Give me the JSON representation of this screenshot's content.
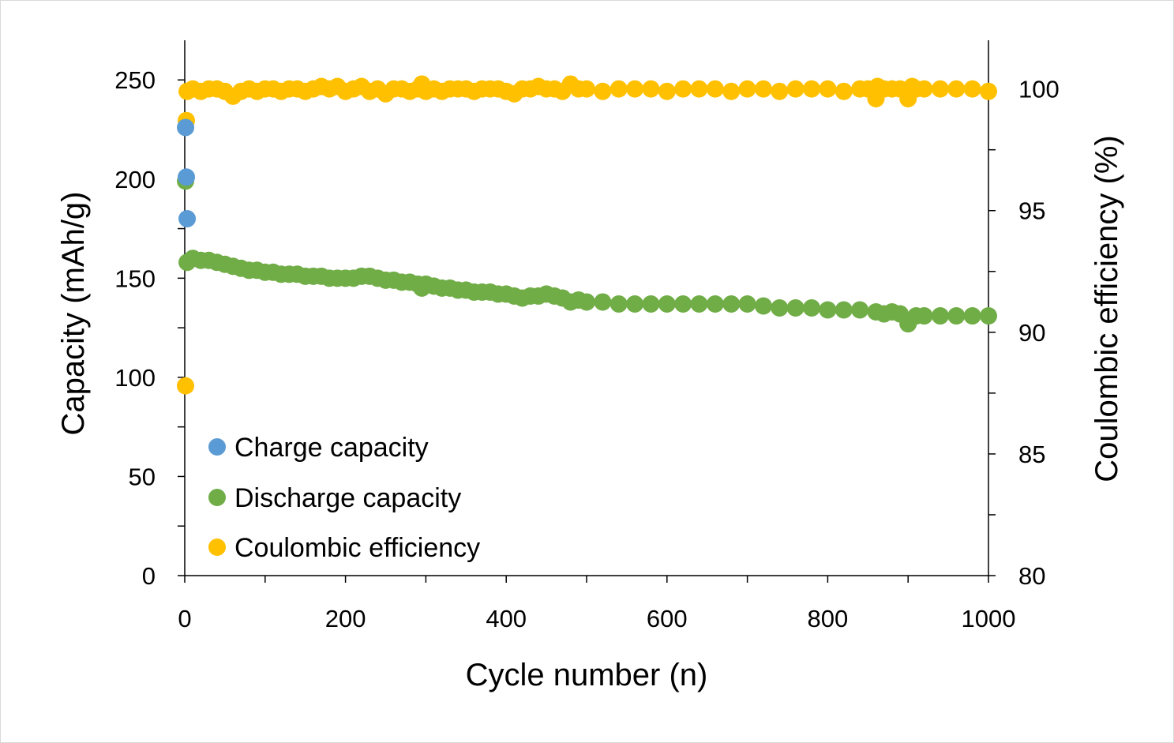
{
  "chart_data": {
    "type": "scatter",
    "xlabel": "Cycle number (n)",
    "ylabel": "Capacity (mAh/g)",
    "y2label": "Coulombic efficiency (%)",
    "xlim": [
      0,
      1000
    ],
    "ylim": [
      0,
      270
    ],
    "y2lim": [
      80,
      102
    ],
    "x_ticks": [
      0,
      200,
      400,
      600,
      800,
      1000
    ],
    "x_minor_step": 100,
    "y_ticks": [
      0,
      50,
      100,
      150,
      200,
      250
    ],
    "y_minor_step": 25,
    "y2_ticks": [
      80,
      85,
      90,
      95,
      100
    ],
    "y2_minor_step": 2.5,
    "grid": false,
    "legend_position": "bottom-left",
    "series": [
      {
        "name": "Charge capacity",
        "color": "#5b9bd5",
        "axis": "left",
        "points": [
          [
            1,
            226
          ],
          [
            2,
            201
          ],
          [
            3,
            180
          ]
        ]
      },
      {
        "name": "Discharge capacity",
        "color": "#70ad47",
        "axis": "left",
        "points": [
          [
            1,
            199
          ],
          [
            3,
            158
          ],
          [
            10,
            160
          ],
          [
            20,
            159
          ],
          [
            30,
            159
          ],
          [
            40,
            158
          ],
          [
            50,
            157
          ],
          [
            60,
            156
          ],
          [
            70,
            155
          ],
          [
            80,
            154
          ],
          [
            90,
            154
          ],
          [
            100,
            153
          ],
          [
            110,
            153
          ],
          [
            120,
            152
          ],
          [
            130,
            152
          ],
          [
            140,
            152
          ],
          [
            150,
            151
          ],
          [
            160,
            151
          ],
          [
            170,
            151
          ],
          [
            180,
            150
          ],
          [
            190,
            150
          ],
          [
            200,
            150
          ],
          [
            210,
            150
          ],
          [
            220,
            151
          ],
          [
            230,
            151
          ],
          [
            240,
            150
          ],
          [
            250,
            149
          ],
          [
            260,
            149
          ],
          [
            270,
            148
          ],
          [
            280,
            148
          ],
          [
            290,
            147
          ],
          [
            295,
            145
          ],
          [
            300,
            147
          ],
          [
            310,
            146
          ],
          [
            320,
            145
          ],
          [
            330,
            145
          ],
          [
            340,
            144
          ],
          [
            350,
            144
          ],
          [
            360,
            143
          ],
          [
            370,
            143
          ],
          [
            380,
            143
          ],
          [
            390,
            142
          ],
          [
            400,
            142
          ],
          [
            410,
            141
          ],
          [
            420,
            140
          ],
          [
            430,
            141
          ],
          [
            440,
            141
          ],
          [
            450,
            142
          ],
          [
            460,
            141
          ],
          [
            470,
            140
          ],
          [
            480,
            138
          ],
          [
            490,
            139
          ],
          [
            500,
            138
          ],
          [
            520,
            138
          ],
          [
            540,
            137
          ],
          [
            560,
            137
          ],
          [
            580,
            137
          ],
          [
            600,
            137
          ],
          [
            620,
            137
          ],
          [
            640,
            137
          ],
          [
            660,
            137
          ],
          [
            680,
            137
          ],
          [
            700,
            137
          ],
          [
            720,
            136
          ],
          [
            740,
            135
          ],
          [
            760,
            135
          ],
          [
            780,
            135
          ],
          [
            800,
            134
          ],
          [
            820,
            134
          ],
          [
            840,
            134
          ],
          [
            860,
            133
          ],
          [
            870,
            132
          ],
          [
            880,
            133
          ],
          [
            890,
            132
          ],
          [
            900,
            127
          ],
          [
            910,
            131
          ],
          [
            920,
            131
          ],
          [
            940,
            131
          ],
          [
            960,
            131
          ],
          [
            980,
            131
          ],
          [
            1000,
            131
          ]
        ]
      },
      {
        "name": "Coulombic efficiency",
        "color": "#ffc000",
        "axis": "right",
        "points": [
          [
            1,
            87.8
          ],
          [
            2,
            98.7
          ],
          [
            3,
            99.9
          ],
          [
            10,
            100
          ],
          [
            20,
            99.9
          ],
          [
            30,
            100
          ],
          [
            40,
            100
          ],
          [
            50,
            99.9
          ],
          [
            60,
            99.7
          ],
          [
            70,
            99.9
          ],
          [
            80,
            100
          ],
          [
            90,
            99.9
          ],
          [
            100,
            100
          ],
          [
            110,
            100
          ],
          [
            120,
            99.9
          ],
          [
            130,
            100
          ],
          [
            140,
            100
          ],
          [
            150,
            99.9
          ],
          [
            160,
            100
          ],
          [
            170,
            100.1
          ],
          [
            180,
            100
          ],
          [
            190,
            100.1
          ],
          [
            200,
            99.9
          ],
          [
            210,
            100
          ],
          [
            220,
            100.1
          ],
          [
            230,
            99.9
          ],
          [
            240,
            100
          ],
          [
            250,
            99.8
          ],
          [
            260,
            100
          ],
          [
            270,
            100
          ],
          [
            280,
            99.9
          ],
          [
            290,
            100
          ],
          [
            295,
            100.2
          ],
          [
            300,
            99.9
          ],
          [
            310,
            100
          ],
          [
            320,
            99.9
          ],
          [
            330,
            100
          ],
          [
            340,
            100
          ],
          [
            350,
            100
          ],
          [
            360,
            99.9
          ],
          [
            370,
            100
          ],
          [
            380,
            100
          ],
          [
            390,
            100
          ],
          [
            400,
            99.9
          ],
          [
            410,
            99.8
          ],
          [
            420,
            100
          ],
          [
            430,
            100
          ],
          [
            440,
            100.1
          ],
          [
            450,
            100
          ],
          [
            460,
            100
          ],
          [
            470,
            99.9
          ],
          [
            480,
            100.2
          ],
          [
            490,
            100
          ],
          [
            500,
            100
          ],
          [
            520,
            99.9
          ],
          [
            540,
            100
          ],
          [
            560,
            100
          ],
          [
            580,
            100
          ],
          [
            600,
            99.9
          ],
          [
            620,
            100
          ],
          [
            640,
            100
          ],
          [
            660,
            100
          ],
          [
            680,
            99.9
          ],
          [
            700,
            100
          ],
          [
            720,
            100
          ],
          [
            740,
            99.9
          ],
          [
            760,
            100
          ],
          [
            780,
            100
          ],
          [
            800,
            100
          ],
          [
            820,
            99.9
          ],
          [
            840,
            100
          ],
          [
            850,
            100
          ],
          [
            860,
            99.6
          ],
          [
            862,
            100.1
          ],
          [
            870,
            100
          ],
          [
            880,
            100
          ],
          [
            890,
            100
          ],
          [
            900,
            99.6
          ],
          [
            905,
            100.1
          ],
          [
            910,
            100
          ],
          [
            920,
            100
          ],
          [
            940,
            100
          ],
          [
            960,
            100
          ],
          [
            980,
            100
          ],
          [
            1000,
            99.9
          ]
        ]
      }
    ]
  }
}
